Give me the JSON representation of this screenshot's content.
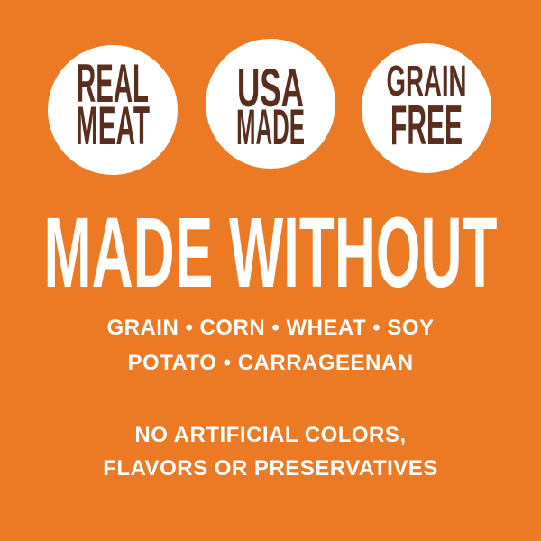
{
  "colors": {
    "background": "#EC7A24",
    "badge": "#FFFFFF",
    "badge_text": "#5A2E1E",
    "text": "#FFFFFF"
  },
  "badges": [
    {
      "line1": "REAL",
      "line2": "MEAT"
    },
    {
      "line1": "USA",
      "line2": "MADE"
    },
    {
      "line1": "GRAIN",
      "line2": "FREE"
    }
  ],
  "headline": "MADE WITHOUT",
  "ingredients_line1": "GRAIN • CORN • WHEAT • SOY",
  "ingredients_line2": "POTATO • CARRAGEENAN",
  "claim_line1": "NO ARTIFICIAL COLORS,",
  "claim_line2": "FLAVORS OR PRESERVATIVES"
}
